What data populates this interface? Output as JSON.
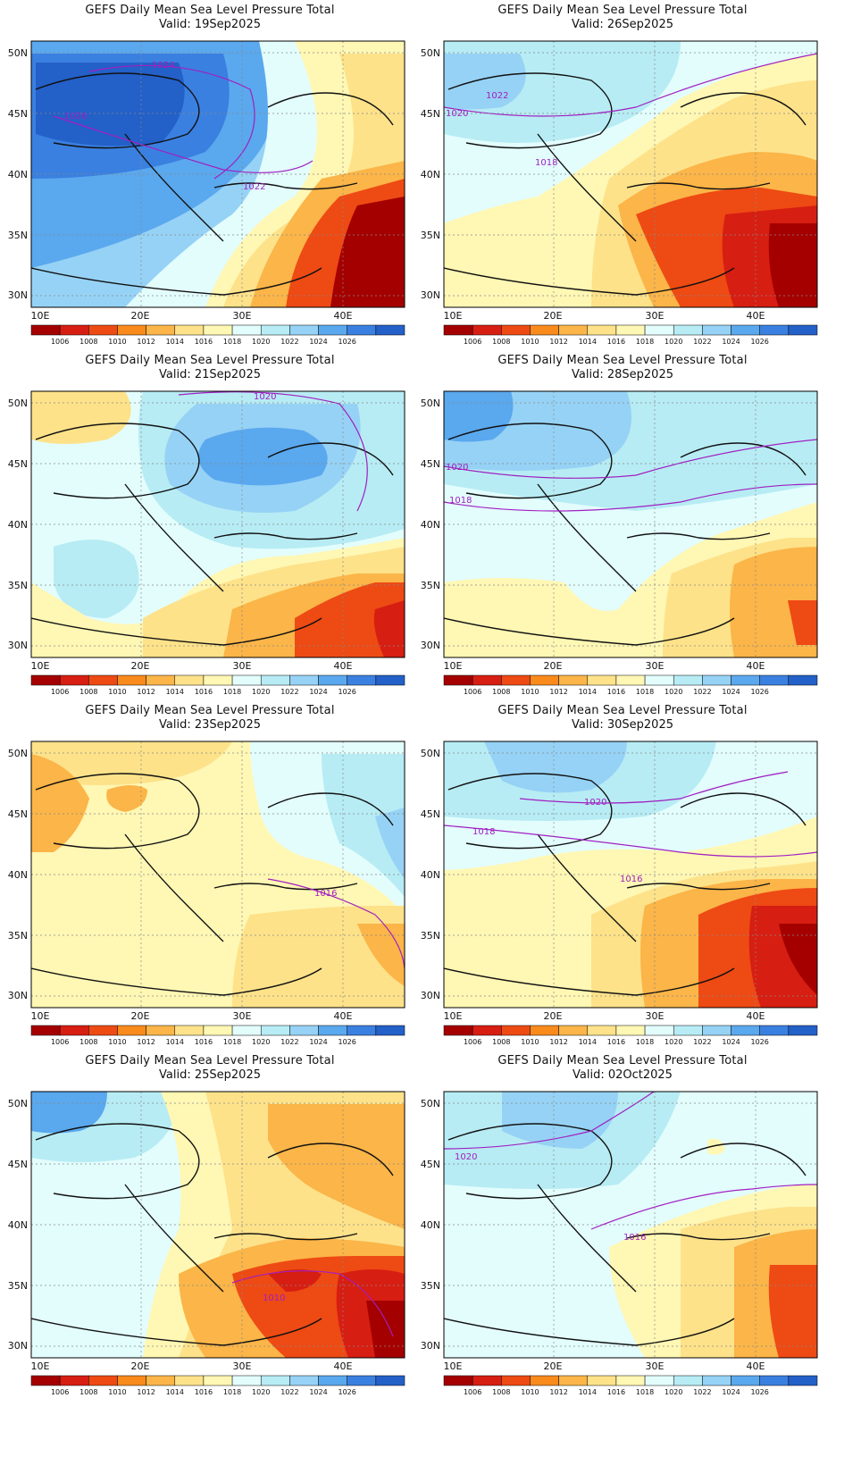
{
  "header": {
    "title": "GEFS Daily Mean Sea Level Pressure Total"
  },
  "axes": {
    "lat_labels": [
      "50N",
      "45N",
      "40N",
      "35N",
      "30N"
    ],
    "lon_labels": [
      "10E",
      "20E",
      "30E",
      "40E"
    ]
  },
  "colorbar": {
    "labels": [
      "1006",
      "1008",
      "1010",
      "1012",
      "1014",
      "1016",
      "1018",
      "1020",
      "1022",
      "1024",
      "1026"
    ],
    "colors": [
      "#a50000",
      "#d71e12",
      "#ee4a14",
      "#f98a1c",
      "#fbb548",
      "#fde28a",
      "#fff7b4",
      "#e3fdfd",
      "#b7ecf4",
      "#96d2f5",
      "#5aa8ee",
      "#3a80e0",
      "#2360c8"
    ]
  },
  "panels": [
    {
      "id": "p1",
      "valid": "Valid: 19Sep2025",
      "contour_labels": [
        "1024",
        "1026",
        "1022"
      ]
    },
    {
      "id": "p2",
      "valid": "Valid: 26Sep2025",
      "contour_labels": [
        "1020",
        "1022",
        "1018"
      ]
    },
    {
      "id": "p3",
      "valid": "Valid: 21Sep2025",
      "contour_labels": [
        "1020"
      ]
    },
    {
      "id": "p4",
      "valid": "Valid: 28Sep2025",
      "contour_labels": [
        "1020",
        "1018"
      ]
    },
    {
      "id": "p5",
      "valid": "Valid: 23Sep2025",
      "contour_labels": [
        "1016"
      ]
    },
    {
      "id": "p6",
      "valid": "Valid: 30Sep2025",
      "contour_labels": [
        "1020",
        "1018",
        "1016"
      ]
    },
    {
      "id": "p7",
      "valid": "Valid: 25Sep2025",
      "contour_labels": [
        "1010"
      ]
    },
    {
      "id": "p8",
      "valid": "Valid: 02Oct2025",
      "contour_labels": [
        "1020",
        "1016"
      ]
    }
  ]
}
